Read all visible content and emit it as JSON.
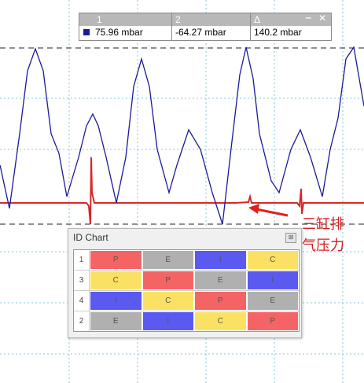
{
  "readout": {
    "headers": [
      "1",
      "2",
      "Δ"
    ],
    "values": [
      "75.96 mbar",
      "-64.27 mbar",
      "140.2 mbar"
    ]
  },
  "id_chart": {
    "title": "ID Chart",
    "rows": [
      {
        "label": "1",
        "cells": [
          "P",
          "E",
          "I",
          "C"
        ]
      },
      {
        "label": "3",
        "cells": [
          "C",
          "P",
          "E",
          "I"
        ]
      },
      {
        "label": "4",
        "cells": [
          "I",
          "C",
          "P",
          "E"
        ]
      },
      {
        "label": "2",
        "cells": [
          "E",
          "I",
          "C",
          "P"
        ]
      }
    ]
  },
  "annotation": {
    "lines": [
      "三缸排",
      "气压力"
    ]
  }
}
